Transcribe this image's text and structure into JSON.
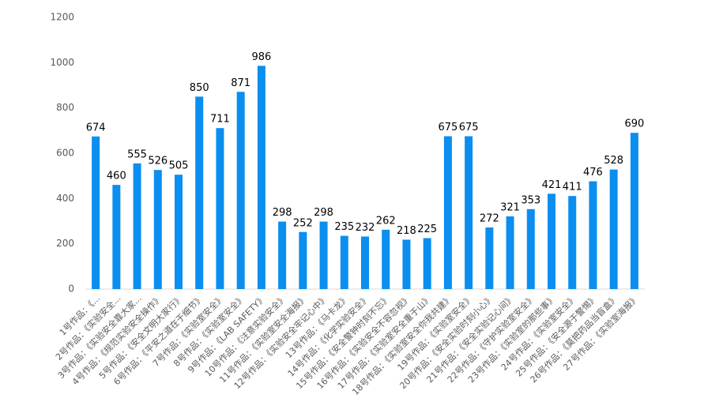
{
  "chart_data": {
    "type": "bar",
    "categories": [
      "1号作品：《...",
      "2号作品：《实验安全...",
      "3号作品：《实验安全靠大家...",
      "4号作品：《规范实验安全操作》",
      "5号作品：《安全文明大家行》",
      "6号作品：《平安之道在于细节》",
      "7号作品：《实验室安全》",
      "8号作品：《实验室安全》",
      "9号作品：《LAB SAFETY》",
      "10号作品：《注意实验安全》",
      "11号作品：《实验室安全海报》",
      "12号作品：《实验安全牢记心中》",
      "13号作品：《马卡龙》",
      "14号作品：《化学实验安全》",
      "15号作品：《安全警钟时刻不忘》",
      "16号作品：《实验安全不容忽视》",
      "17号作品：《实验室安全重于山》",
      "18号作品：《实验室安全你我共建》",
      "19号作品：《实验室安全》",
      "20号作品：《安全实验时刻小心》",
      "21号作品：《安全实验记心间》",
      "22号作品：《守护实验室安全》",
      "23号作品：《实验室的那些事》",
      "24号作品：《实验室安全》",
      "25号作品：《安全源于警惕》",
      "26号作品：《莫把药品当盲盒》",
      "27号作品：《实验室海报》"
    ],
    "values": [
      674,
      460,
      555,
      526,
      505,
      850,
      711,
      871,
      986,
      298,
      252,
      298,
      235,
      232,
      262,
      218,
      225,
      675,
      675,
      272,
      321,
      353,
      421,
      411,
      476,
      528,
      690
    ],
    "color": "#0a8ef0",
    "ylim": [
      0,
      1200
    ],
    "yticks": [
      0,
      200,
      400,
      600,
      800,
      1000,
      1200
    ],
    "grid": false
  }
}
